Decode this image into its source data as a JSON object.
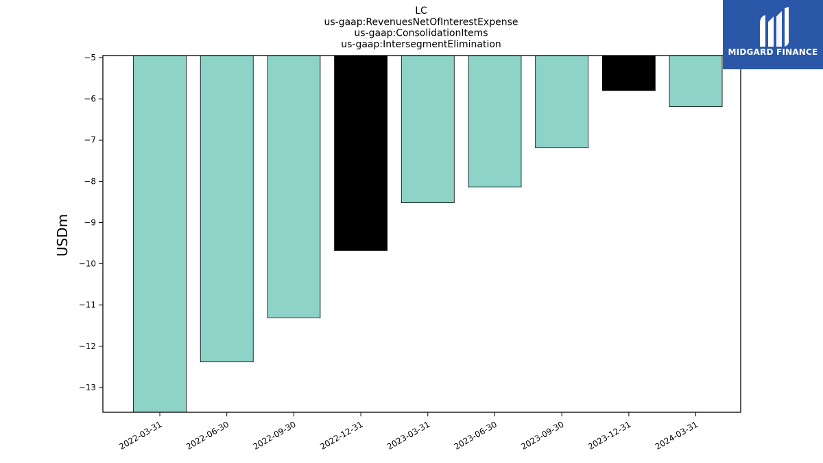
{
  "chart_data": {
    "type": "bar",
    "title": [
      "LC",
      "us-gaap:RevenuesNetOfInterestExpense",
      "us-gaap:ConsolidationItems",
      "us-gaap:IntersegmentElimination"
    ],
    "xlabel": "",
    "ylabel": "USDm",
    "ylim": [
      -13.6,
      -4.95
    ],
    "yticks": [
      -5,
      -6,
      -7,
      -8,
      -9,
      -10,
      -11,
      -12,
      -13
    ],
    "categories": [
      "2022-03-31",
      "2022-06-30",
      "2022-09-30",
      "2022-12-31",
      "2023-03-31",
      "2023-06-30",
      "2023-09-30",
      "2023-12-31",
      "2024-03-31"
    ],
    "values": [
      -13.6,
      -12.38,
      -11.31,
      -9.68,
      -8.52,
      -8.14,
      -7.19,
      -5.8,
      -6.19
    ],
    "bar_colors": [
      "#8dd3c7",
      "#8dd3c7",
      "#8dd3c7",
      "#000000",
      "#8dd3c7",
      "#8dd3c7",
      "#8dd3c7",
      "#000000",
      "#8dd3c7"
    ],
    "grid": false,
    "legend": "none"
  },
  "logo": {
    "text": "MIDGARD FINANCE",
    "background": "#2b57a8"
  }
}
